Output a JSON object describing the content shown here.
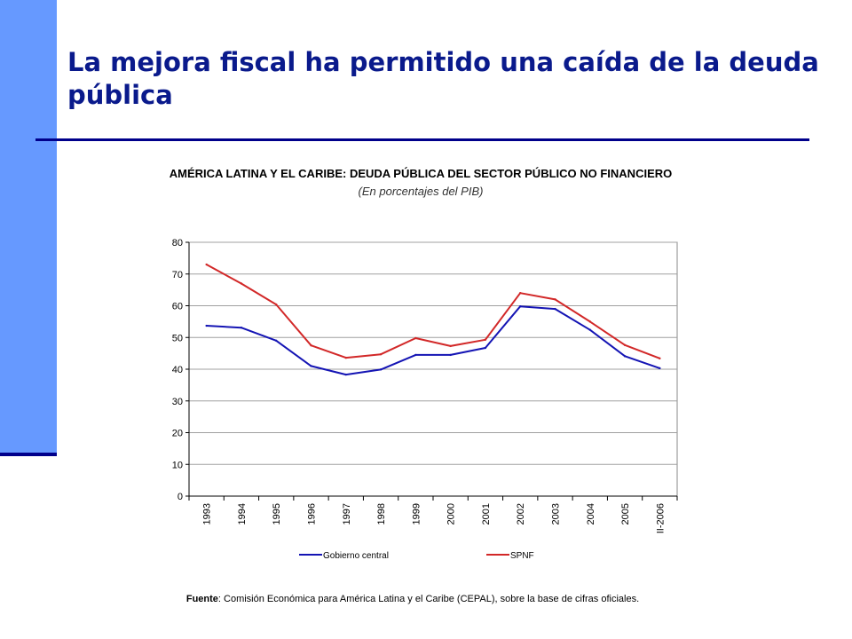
{
  "slide": {
    "title": "La mejora fiscal ha permitido una caída de la deuda pública"
  },
  "source": {
    "label": "Fuente",
    "text": ": Comisión Económica para América Latina y el Caribe (CEPAL), sobre la base de cifras oficiales."
  },
  "colors": {
    "accent_bar": "#6699ff",
    "accent_dark": "#00008b",
    "title": "#0a1a8c"
  },
  "chart_data": {
    "type": "line",
    "title": "AMÉRICA LATINA Y EL CARIBE: DEUDA PÚBLICA DEL SECTOR PÚBLICO NO FINANCIERO",
    "subtitle": "(En porcentajes del PIB)",
    "xlabel": "",
    "ylabel": "",
    "categories": [
      "1993",
      "1994",
      "1995",
      "1996",
      "1997",
      "1998",
      "1999",
      "2000",
      "2001",
      "2002",
      "2003",
      "2004",
      "2005",
      "II-2006"
    ],
    "ylim": [
      0,
      80
    ],
    "yticks": [
      0,
      10,
      20,
      30,
      40,
      50,
      60,
      70,
      80
    ],
    "grid": true,
    "legend_position": "bottom",
    "series": [
      {
        "name": "Gobierno central",
        "color": "#1414b4",
        "values": [
          53.7,
          53.1,
          49.0,
          41.0,
          38.3,
          39.9,
          44.5,
          44.5,
          46.7,
          59.8,
          59.0,
          52.4,
          44.1,
          40.3
        ]
      },
      {
        "name": "SPNF",
        "color": "#d22828",
        "values": [
          73.0,
          67.0,
          60.4,
          47.5,
          43.6,
          44.7,
          49.8,
          47.3,
          49.3,
          64.0,
          62.0,
          55.0,
          47.6,
          43.4
        ]
      }
    ]
  }
}
